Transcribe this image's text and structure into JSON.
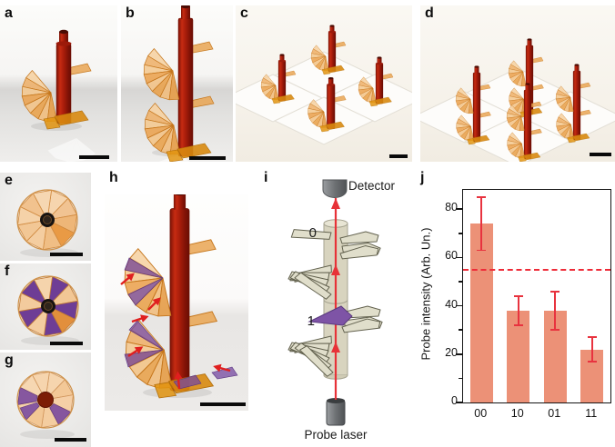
{
  "figure_labels": {
    "a": "a",
    "b": "b",
    "c": "c",
    "d": "d",
    "e": "e",
    "f": "f",
    "g": "g",
    "h": "h",
    "i": "i",
    "j": "j"
  },
  "schematic": {
    "detector": "Detector",
    "probe_laser": "Probe laser",
    "bit_top": "0",
    "bit_bottom": "1"
  },
  "colors": {
    "column_red": "#a81d0b",
    "step_orange": "#eaa24e",
    "doped_purple": "#6f3f96",
    "schematic_beige": "#dedbc6",
    "beam_red": "#e73238",
    "arrow_red": "#e01f1f",
    "scale_bar": "#0a0a0a"
  },
  "chart_data": {
    "type": "bar",
    "categories": [
      "00",
      "10",
      "01",
      "11"
    ],
    "values": [
      74,
      38,
      38,
      22
    ],
    "error_low": [
      63,
      32,
      30,
      17
    ],
    "error_high": [
      85,
      44,
      46,
      27
    ],
    "reference_line": 55,
    "title": "",
    "xlabel": "",
    "ylabel": "Probe intensity (Arb. Un.)",
    "yticks": [
      0,
      20,
      40,
      60,
      80
    ],
    "yticks_minor": [
      10,
      30,
      50,
      70
    ],
    "ylim": [
      0,
      88
    ],
    "grid": false,
    "frame": "box",
    "bar_color": "#ec9177",
    "error_color": "#e8333f",
    "ref_line_color": "#ee2b38"
  }
}
